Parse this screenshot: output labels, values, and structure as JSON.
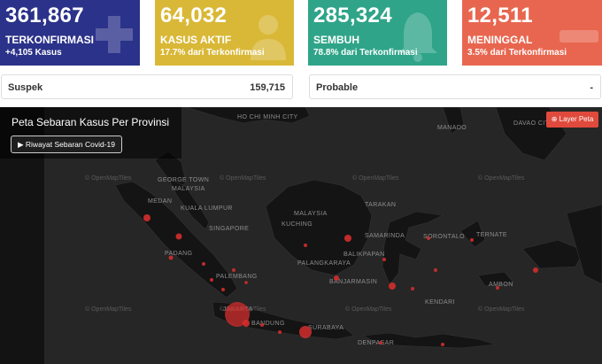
{
  "cards": [
    {
      "number": "361,867",
      "label": "TERKONFIRMASI",
      "sub": "+4,105 Kasus",
      "color": "#2b3289",
      "icon": "plus-icon"
    },
    {
      "number": "64,032",
      "label": "KASUS AKTIF",
      "sub": "17.7% dari Terkonfirmasi",
      "color": "#d9b837",
      "icon": "doctor-icon"
    },
    {
      "number": "285,324",
      "label": "SEMBUH",
      "sub": "78.8% dari Terkonfirmasi",
      "color": "#2fa489",
      "icon": "bell-icon"
    },
    {
      "number": "12,511",
      "label": "MENINGGAL",
      "sub": "3.5% dari Terkonfirmasi",
      "color": "#e8664f",
      "icon": "minus-icon"
    }
  ],
  "stats": {
    "suspek": {
      "label": "Suspek",
      "value": "159,715"
    },
    "probable": {
      "label": "Probable",
      "value": "-"
    }
  },
  "map": {
    "title": "Peta Sebaran Kasus Per Provinsi",
    "history_button": "▶ Riwayat Sebaran Covid-19",
    "layer_button": "⊕ Layer Peta",
    "attribution": "© OpenMapTiles",
    "places": [
      "HO CHI MINH CITY",
      "GEORGE TOWN",
      "MALAYSIA",
      "MEDAN",
      "KUALA LUMPUR",
      "SINGAPORE",
      "MALAYSIA",
      "KUCHING",
      "TARAKAN",
      "SAMARINDA",
      "BALIKPAPAN",
      "BANJARMASIN",
      "PALANGKARAYA",
      "SORONTALO",
      "TERNATE",
      "PADANG",
      "PALEMBANG",
      "BANDUNG",
      "SURABAYA",
      "KENDARI",
      "AMBON",
      "DENPASAR",
      "JAKARTA",
      "DAVAO CITY",
      "MANADO"
    ]
  }
}
